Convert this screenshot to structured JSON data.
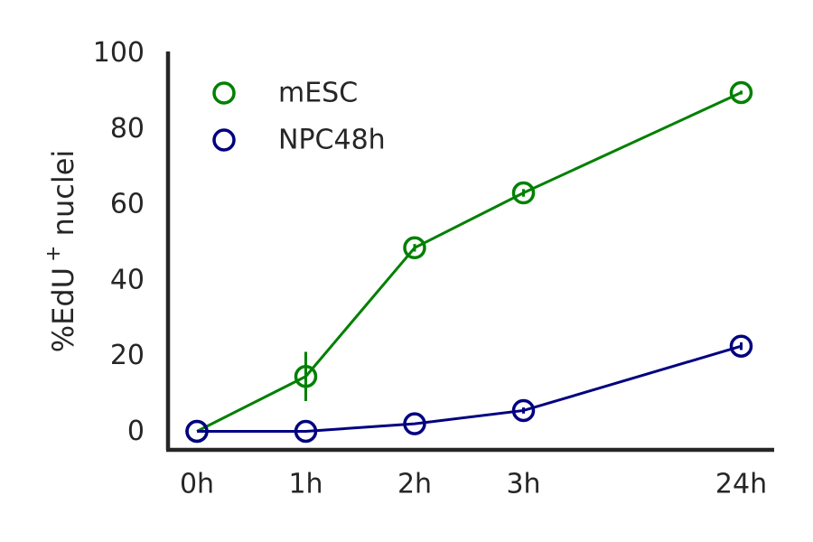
{
  "chart_data": {
    "type": "line",
    "categories": [
      "0h",
      "1h",
      "2h",
      "3h",
      "24h"
    ],
    "x": [
      0,
      1,
      2,
      3,
      5
    ],
    "ylabel_main": "%EdU",
    "ylabel_sup": "+",
    "ylabel_tail": " nuclei",
    "ylim": [
      -5,
      100
    ],
    "yticks": [
      0,
      20,
      40,
      60,
      80,
      100
    ],
    "grid": false,
    "legend": "top-left",
    "series": [
      {
        "name": "mESC",
        "color": "#008000",
        "values": [
          0,
          14.5,
          48.5,
          63,
          89.5
        ],
        "errors": [
          0,
          6.5,
          1,
          1,
          0.5
        ]
      },
      {
        "name": "NPC48h",
        "color": "#000080",
        "values": [
          0,
          0,
          2,
          5.5,
          22.5
        ],
        "errors": [
          0,
          0,
          0,
          0.8,
          1
        ]
      }
    ]
  }
}
